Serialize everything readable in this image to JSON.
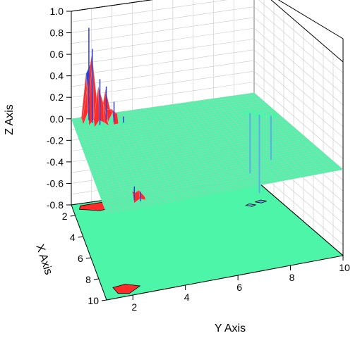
{
  "chart_data": {
    "type": "3d-surface",
    "x_axis": {
      "title": "X Axis",
      "ticks": [
        "2",
        "4",
        "6",
        "8",
        "10"
      ],
      "range": [
        1,
        10
      ]
    },
    "y_axis": {
      "title": "Y Axis",
      "ticks": [
        "2",
        "4",
        "6",
        "8",
        "10"
      ],
      "range": [
        1,
        10
      ]
    },
    "z_axis": {
      "title": "Z Axis",
      "ticks": [
        "1.0",
        "0.8",
        "0.6",
        "0.4",
        "0.2",
        "0.0",
        "-0.2",
        "-0.4",
        "-0.6",
        "-0.8"
      ],
      "range": [
        -0.8,
        1.0
      ]
    },
    "surface_baseline_z": 0.0,
    "peaks": [
      {
        "x": 1.3,
        "y": 1.8,
        "z": 0.85
      },
      {
        "x": 1.6,
        "y": 1.9,
        "z": 0.68
      },
      {
        "x": 1.9,
        "y": 2.2,
        "z": 0.42
      },
      {
        "x": 1.5,
        "y": 2.6,
        "z": 0.3
      },
      {
        "x": 1.8,
        "y": 2.9,
        "z": 0.18
      },
      {
        "x": 2.0,
        "y": 3.3,
        "z": 0.05
      },
      {
        "x": 9.2,
        "y": 2.2,
        "z": 0.12
      },
      {
        "x": 9.4,
        "y": 2.4,
        "z": 0.08
      }
    ],
    "troughs": [
      {
        "x": 3.3,
        "y": 9.2,
        "z": -0.72
      },
      {
        "x": 3.0,
        "y": 8.9,
        "z": -0.55
      },
      {
        "x": 3.6,
        "y": 9.6,
        "z": -0.4
      }
    ],
    "colormap": {
      "low": "#5ab0e8",
      "mid": "#4cf5a8",
      "high": "#ff2a2a",
      "peak": "#2b3fd6"
    },
    "grid": true
  }
}
